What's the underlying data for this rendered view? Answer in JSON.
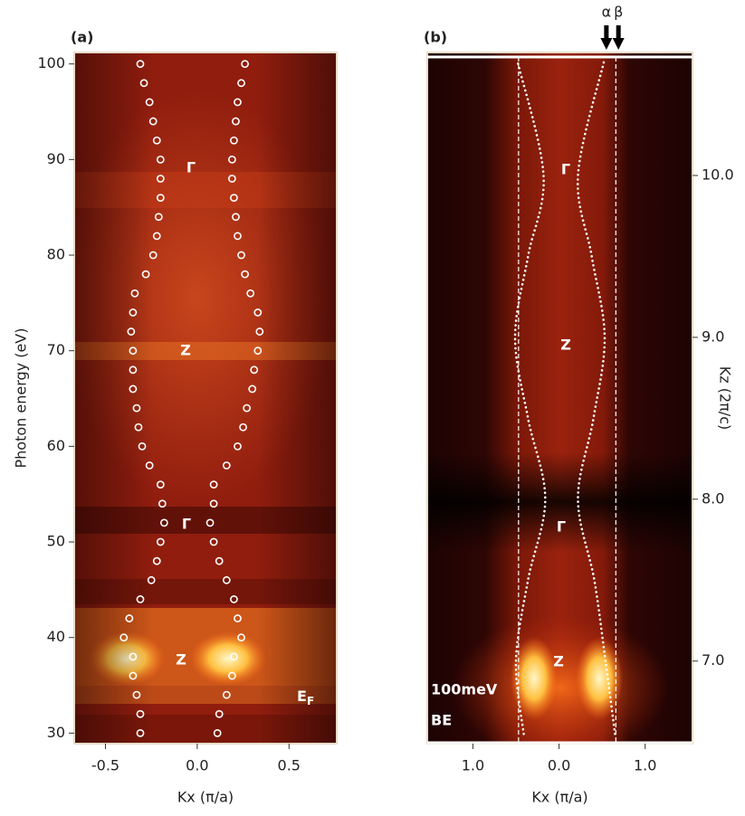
{
  "chart_data": [
    {
      "type": "scatter",
      "panel_label": "(a)",
      "x_label": "Kx (π/a)",
      "y_label": "Photon energy (eV)",
      "xlim": [
        -0.67,
        0.76
      ],
      "ylim": [
        28.9,
        101.2
      ],
      "xticks": [
        -0.5,
        {
          "value": 0,
          "label": "0.0"
        },
        0.5
      ],
      "yticks": [
        30,
        40,
        50,
        60,
        70,
        80,
        90,
        100
      ],
      "marker_color": "#ffffff",
      "series": [
        {
          "x": [
            -0.31,
            -0.31,
            -0.33,
            -0.35,
            -0.35,
            -0.4,
            -0.37,
            -0.31,
            -0.25,
            -0.22,
            -0.2,
            -0.18,
            -0.19,
            -0.2,
            -0.26,
            -0.3,
            -0.32,
            -0.33,
            -0.35,
            -0.35,
            -0.35,
            -0.36,
            -0.35,
            -0.34,
            -0.28,
            -0.24,
            -0.22,
            -0.21,
            -0.2,
            -0.2,
            -0.2,
            -0.22,
            -0.24,
            -0.26,
            -0.29,
            -0.31
          ],
          "y": [
            30,
            32,
            34,
            36,
            38,
            40,
            42,
            44,
            46,
            48,
            50,
            52,
            54,
            56,
            58,
            60,
            62,
            64,
            66,
            68,
            70,
            72,
            74,
            76,
            78,
            80,
            82,
            84,
            86,
            88,
            90,
            92,
            94,
            96,
            98,
            100
          ]
        },
        {
          "x": [
            0.11,
            0.12,
            0.16,
            0.19,
            0.2,
            0.24,
            0.22,
            0.2,
            0.16,
            0.12,
            0.09,
            0.07,
            0.09,
            0.09,
            0.16,
            0.22,
            0.25,
            0.27,
            0.3,
            0.31,
            0.33,
            0.34,
            0.33,
            0.29,
            0.26,
            0.24,
            0.22,
            0.21,
            0.2,
            0.19,
            0.19,
            0.2,
            0.21,
            0.22,
            0.24,
            0.26
          ],
          "y": [
            30,
            32,
            34,
            36,
            38,
            40,
            42,
            44,
            46,
            48,
            50,
            52,
            54,
            56,
            58,
            60,
            62,
            64,
            66,
            68,
            70,
            72,
            74,
            76,
            78,
            80,
            82,
            84,
            86,
            88,
            90,
            92,
            94,
            96,
            98,
            100
          ]
        }
      ],
      "annotations": [
        "Γ",
        "Z",
        "Γ",
        "Z"
      ],
      "fermi_label": {
        "main": "E",
        "sub": "F"
      }
    },
    {
      "type": "line",
      "panel_label": "(b)",
      "x_label": "Kx (π/a)",
      "y2_label": "Kz (2π/c)",
      "xlim": [
        -1.53,
        1.55
      ],
      "y2lim": [
        6.49,
        10.76
      ],
      "xticks": [
        {
          "value": -1,
          "label": "1.0"
        },
        {
          "value": 0,
          "label": "0.0"
        },
        {
          "value": 1,
          "label": "1.0"
        }
      ],
      "y2ticks": [
        {
          "value": 7,
          "label": "7.0"
        },
        {
          "value": 8,
          "label": "8.0"
        },
        {
          "value": 9,
          "label": "9.0"
        },
        {
          "value": 10,
          "label": "10.0"
        }
      ],
      "line_color": "#ffffff",
      "series": [
        {
          "axis": "y2",
          "x": [
            -0.41,
            -0.5,
            -0.36,
            -0.16,
            -0.36,
            -0.51,
            -0.36,
            -0.18,
            -0.48
          ],
          "y": [
            6.55,
            7.0,
            7.5,
            8.0,
            8.5,
            9.0,
            9.5,
            10.0,
            10.7
          ]
        },
        {
          "axis": "y2",
          "x": [
            0.65,
            0.54,
            0.41,
            0.22,
            0.4,
            0.53,
            0.38,
            0.22,
            0.52
          ],
          "y": [
            6.55,
            7.0,
            7.5,
            8.0,
            8.5,
            9.0,
            9.5,
            10.0,
            10.7
          ]
        }
      ],
      "vlines": [
        -0.47,
        0.66
      ],
      "arrows": [
        {
          "label": "α",
          "x": 0.55
        },
        {
          "label": "β",
          "x": 0.69
        }
      ],
      "annotations": [
        "Γ",
        "Z",
        "Γ",
        "Z"
      ],
      "corner_text": [
        "100meV",
        "BE"
      ]
    }
  ]
}
